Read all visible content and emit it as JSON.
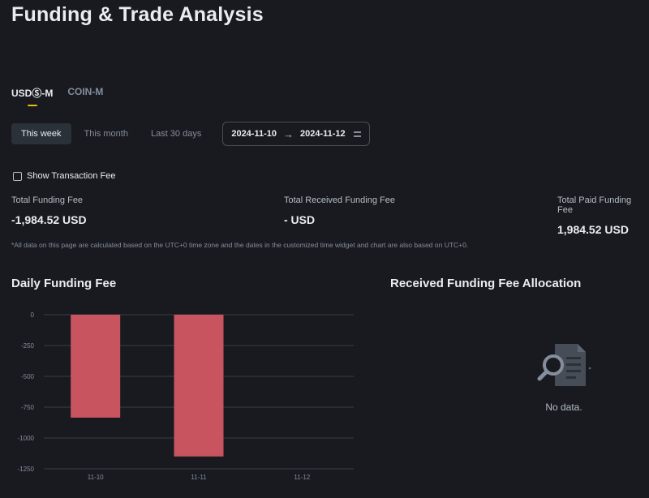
{
  "page": {
    "title": "Funding & Trade Analysis"
  },
  "tabs": [
    {
      "label": "USDⓈ-M",
      "active": true
    },
    {
      "label": "COIN-M",
      "active": false
    }
  ],
  "periods": [
    {
      "label": "This week",
      "active": true
    },
    {
      "label": "This month",
      "active": false
    },
    {
      "label": "Last 30 days",
      "active": false
    }
  ],
  "date_range": {
    "start": "2024-11-10",
    "end": "2024-11-12",
    "arrow": "→",
    "icon": "calendar-icon"
  },
  "show_fee": {
    "label": "Show Transaction Fee",
    "checked": false
  },
  "stats": [
    {
      "label": "Total Funding Fee",
      "value": "-1,984.52 USD"
    },
    {
      "label": "Total Received Funding Fee",
      "value": "- USD"
    },
    {
      "label": "Total Paid Funding Fee",
      "value": "1,984.52 USD"
    }
  ],
  "note": "*All data on this page are calculated based on the UTC+0 time zone and the dates in the customized time widget and chart are also based on UTC+0.",
  "daily_chart_title": "Daily Funding Fee",
  "allocation": {
    "title": "Received Funding Fee Allocation",
    "empty_text": "No data.",
    "icon": "no-data-document-search-icon"
  },
  "colors": {
    "background": "#181a20",
    "bar": "#c8545f",
    "accent": "#f0b90b",
    "grid": "#474d57"
  },
  "chart_data": {
    "type": "bar",
    "title": "Daily Funding Fee",
    "categories": [
      "11-10",
      "11-11",
      "11-12"
    ],
    "values": [
      -835,
      -1150,
      0
    ],
    "yticks": [
      0,
      -250,
      -500,
      -750,
      -1000,
      -1250
    ],
    "ylim": [
      -1250,
      0
    ],
    "grid": true,
    "legend": "none"
  }
}
